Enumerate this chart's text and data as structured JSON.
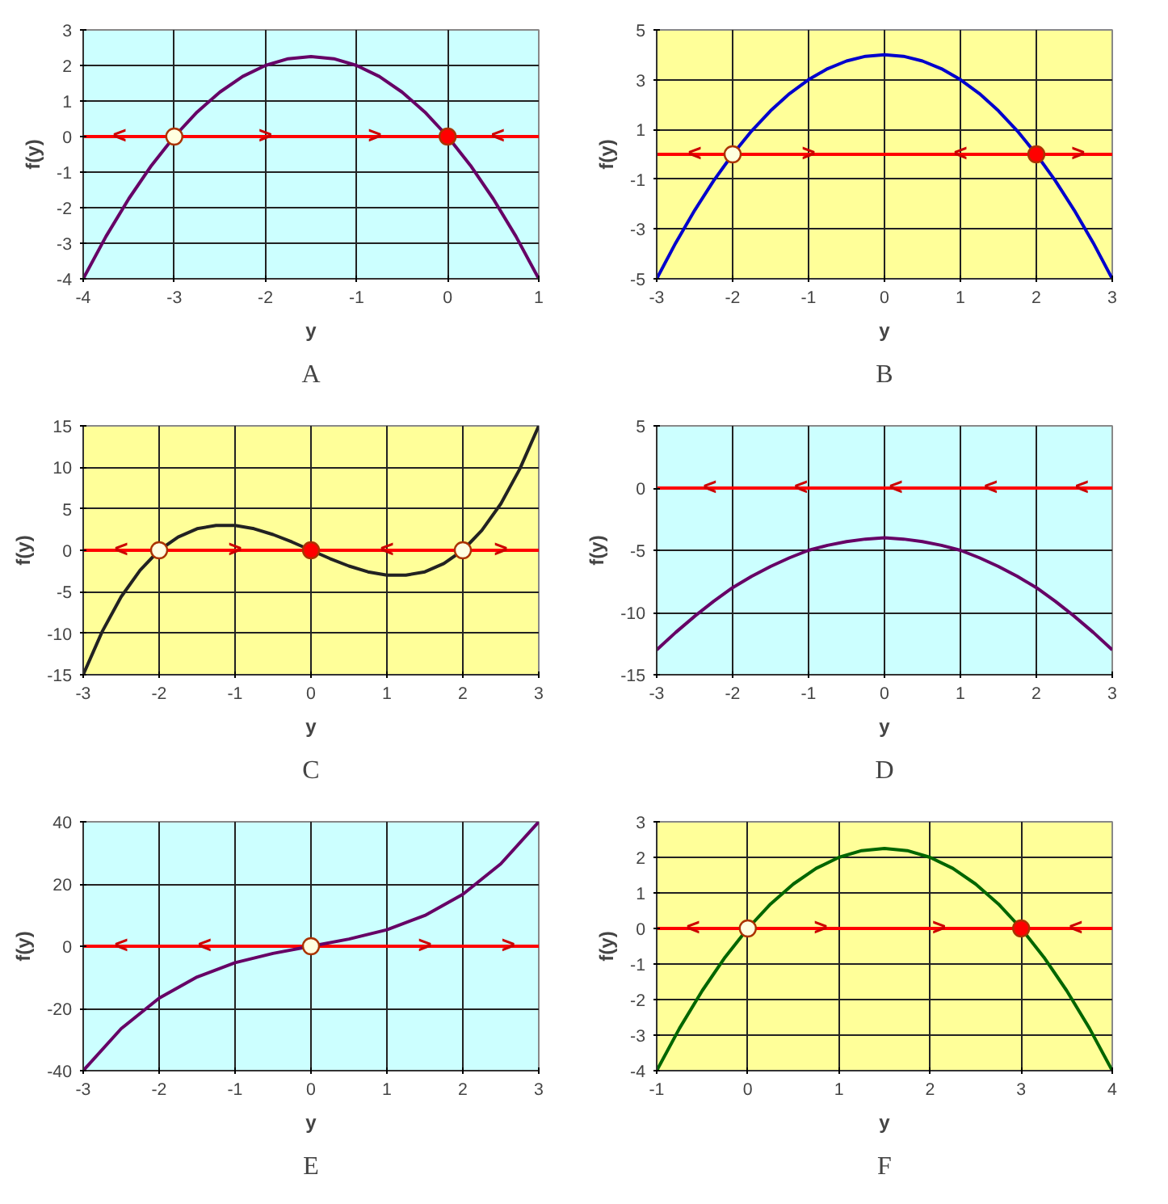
{
  "chart_data": [
    {
      "type": "line",
      "title": "A",
      "xlabel": "y",
      "ylabel": "f(y)",
      "xlim": [
        -4,
        1
      ],
      "ylim": [
        -4,
        3
      ],
      "xticks": [
        -4,
        -3,
        -2,
        -1,
        0,
        1
      ],
      "yticks": [
        -4,
        -3,
        -2,
        -1,
        0,
        1,
        2,
        3
      ],
      "grid": true,
      "series": [
        {
          "color": "#660066",
          "x": [
            -4,
            -3.75,
            -3.5,
            -3.25,
            -3,
            -2.75,
            -2.5,
            -2.25,
            -2,
            -1.75,
            -1.5,
            -1.25,
            -1,
            -0.75,
            -0.5,
            -0.25,
            0,
            0.25,
            0.5,
            0.75,
            1
          ],
          "values": [
            -4,
            -2.81,
            -1.75,
            -0.81,
            0,
            0.69,
            1.25,
            1.69,
            2,
            2.19,
            2.25,
            2.19,
            2,
            1.69,
            1.25,
            0.69,
            0,
            -0.81,
            -1.75,
            -2.81,
            -4
          ]
        },
        {
          "type": "scatter",
          "marker": "circle",
          "color": "#ffffe0",
          "x": [
            -3
          ],
          "values": [
            0
          ]
        },
        {
          "type": "scatter",
          "marker": "circle",
          "color": "#ff0000",
          "x": [
            0
          ],
          "values": [
            0
          ]
        }
      ],
      "ref_lines": [
        {
          "axis": "y",
          "value": 0,
          "color": "#ff0000"
        }
      ],
      "annotations": [
        {
          "text": "<",
          "x": -3.6,
          "y": 0
        },
        {
          "text": ">",
          "x": -2,
          "y": 0
        },
        {
          "text": ">",
          "x": -0.8,
          "y": 0
        },
        {
          "text": "<",
          "x": 0.55,
          "y": 0
        }
      ]
    },
    {
      "type": "line",
      "title": "B",
      "xlabel": "y",
      "ylabel": "f(y)",
      "xlim": [
        -3,
        3
      ],
      "ylim": [
        -5,
        5
      ],
      "xticks": [
        -3,
        -2,
        -1,
        0,
        1,
        2,
        3
      ],
      "yticks": [
        -5,
        -3,
        -1,
        1,
        3,
        5
      ],
      "grid": true,
      "series": [
        {
          "color": "#0000cc",
          "x": [
            -3,
            -2.75,
            -2.5,
            -2.25,
            -2,
            -1.75,
            -1.5,
            -1.25,
            -1,
            -0.75,
            -0.5,
            -0.25,
            0,
            0.25,
            0.5,
            0.75,
            1,
            1.25,
            1.5,
            1.75,
            2,
            2.25,
            2.5,
            2.75,
            3
          ],
          "values": [
            -5,
            -3.56,
            -2.25,
            -1.06,
            0,
            0.94,
            1.75,
            2.44,
            3,
            3.44,
            3.75,
            3.94,
            4,
            3.94,
            3.75,
            3.44,
            3,
            2.44,
            1.75,
            0.94,
            0,
            -1.06,
            -2.25,
            -3.56,
            -5
          ]
        },
        {
          "type": "scatter",
          "marker": "circle",
          "color": "#ffffe0",
          "x": [
            -2
          ],
          "values": [
            0
          ]
        },
        {
          "type": "scatter",
          "marker": "circle",
          "color": "#ff0000",
          "x": [
            2
          ],
          "values": [
            0
          ]
        }
      ],
      "ref_lines": [
        {
          "axis": "y",
          "value": 0,
          "color": "#ff0000"
        }
      ],
      "annotations": [
        {
          "text": "<",
          "x": -2.5,
          "y": 0
        },
        {
          "text": ">",
          "x": -1,
          "y": 0
        },
        {
          "text": "<",
          "x": 1,
          "y": 0
        },
        {
          "text": ">",
          "x": 2.55,
          "y": 0
        }
      ]
    },
    {
      "type": "line",
      "title": "C",
      "xlabel": "y",
      "ylabel": "f(y)",
      "xlim": [
        -3,
        3
      ],
      "ylim": [
        -15,
        15
      ],
      "xticks": [
        -3,
        -2,
        -1,
        0,
        1,
        2,
        3
      ],
      "yticks": [
        -15,
        -10,
        -5,
        0,
        5,
        10,
        15
      ],
      "grid": true,
      "series": [
        {
          "color": "#222222",
          "x": [
            -3,
            -2.75,
            -2.5,
            -2.25,
            -2,
            -1.75,
            -1.5,
            -1.25,
            -1,
            -0.75,
            -0.5,
            -0.25,
            0,
            0.25,
            0.5,
            0.75,
            1,
            1.25,
            1.5,
            1.75,
            2,
            2.25,
            2.5,
            2.75,
            3
          ],
          "values": [
            -15,
            -9.8,
            -5.6,
            -2.4,
            0,
            1.6,
            2.6,
            3,
            3,
            2.6,
            1.9,
            1,
            0,
            -1,
            -1.9,
            -2.6,
            -3,
            -3,
            -2.6,
            -1.6,
            0,
            2.4,
            5.6,
            9.8,
            15
          ]
        },
        {
          "type": "scatter",
          "marker": "circle",
          "color": "#ffffe0",
          "x": [
            -2,
            2
          ],
          "values": [
            0,
            0
          ]
        },
        {
          "type": "scatter",
          "marker": "circle",
          "color": "#ff0000",
          "x": [
            0
          ],
          "values": [
            0
          ]
        }
      ],
      "ref_lines": [
        {
          "axis": "y",
          "value": 0,
          "color": "#ff0000"
        }
      ],
      "annotations": [
        {
          "text": "<",
          "x": -2.5,
          "y": 0
        },
        {
          "text": ">",
          "x": -1,
          "y": 0
        },
        {
          "text": "<",
          "x": 1,
          "y": 0
        },
        {
          "text": ">",
          "x": 2.5,
          "y": 0
        }
      ]
    },
    {
      "type": "line",
      "title": "D",
      "xlabel": "y",
      "ylabel": "f(y)",
      "xlim": [
        -3,
        3
      ],
      "ylim": [
        -15,
        5
      ],
      "xticks": [
        -3,
        -2,
        -1,
        0,
        1,
        2,
        3
      ],
      "yticks": [
        -15,
        -10,
        -5,
        0,
        5
      ],
      "grid": true,
      "series": [
        {
          "color": "#660066",
          "x": [
            -3,
            -2.75,
            -2.5,
            -2.25,
            -2,
            -1.75,
            -1.5,
            -1.25,
            -1,
            -0.75,
            -0.5,
            -0.25,
            0,
            0.25,
            0.5,
            0.75,
            1,
            1.25,
            1.5,
            1.75,
            2,
            2.25,
            2.5,
            2.75,
            3
          ],
          "values": [
            -13,
            -11.6,
            -10.3,
            -9.1,
            -8,
            -7.1,
            -6.3,
            -5.6,
            -5,
            -4.6,
            -4.3,
            -4.1,
            -4,
            -4.1,
            -4.3,
            -4.6,
            -5,
            -5.6,
            -6.3,
            -7.1,
            -8,
            -9.1,
            -10.3,
            -11.6,
            -13
          ]
        }
      ],
      "ref_lines": [
        {
          "axis": "y",
          "value": 0,
          "color": "#ff0000"
        }
      ],
      "annotations": [
        {
          "text": "<",
          "x": -2.3,
          "y": 0
        },
        {
          "text": "<",
          "x": -1.1,
          "y": 0
        },
        {
          "text": "<",
          "x": 0.15,
          "y": 0
        },
        {
          "text": "<",
          "x": 1.4,
          "y": 0
        },
        {
          "text": "<",
          "x": 2.6,
          "y": 0
        }
      ]
    },
    {
      "type": "line",
      "title": "E",
      "xlabel": "y",
      "ylabel": "f(y)",
      "xlim": [
        -3,
        3
      ],
      "ylim": [
        -40,
        40
      ],
      "xticks": [
        -3,
        -2,
        -1,
        0,
        1,
        2,
        3
      ],
      "yticks": [
        -40,
        -20,
        0,
        20,
        40
      ],
      "grid": true,
      "series": [
        {
          "color": "#660066",
          "x": [
            -3,
            -2.5,
            -2,
            -1.5,
            -1,
            -0.5,
            0,
            0.5,
            1,
            1.5,
            2,
            2.5,
            3
          ],
          "values": [
            -40,
            -26.5,
            -16.7,
            -9.9,
            -5.3,
            -2.3,
            0,
            2.3,
            5.3,
            9.9,
            16.7,
            26.5,
            40
          ]
        },
        {
          "type": "scatter",
          "marker": "circle",
          "color": "#ffffe0",
          "x": [
            0
          ],
          "values": [
            0
          ]
        }
      ],
      "ref_lines": [
        {
          "axis": "y",
          "value": 0,
          "color": "#ff0000"
        }
      ],
      "annotations": [
        {
          "text": "<",
          "x": -2.5,
          "y": 0
        },
        {
          "text": "<",
          "x": -1.4,
          "y": 0
        },
        {
          "text": ">",
          "x": 1.5,
          "y": 0
        },
        {
          "text": ">",
          "x": 2.6,
          "y": 0
        }
      ]
    },
    {
      "type": "line",
      "title": "F",
      "xlabel": "y",
      "ylabel": "f(y)",
      "xlim": [
        -1,
        4
      ],
      "ylim": [
        -4,
        3
      ],
      "xticks": [
        -1,
        0,
        1,
        2,
        3,
        4
      ],
      "yticks": [
        -4,
        -3,
        -2,
        -1,
        0,
        1,
        2,
        3
      ],
      "grid": true,
      "series": [
        {
          "color": "#006600",
          "x": [
            -1,
            -0.75,
            -0.5,
            -0.25,
            0,
            0.25,
            0.5,
            0.75,
            1,
            1.25,
            1.5,
            1.75,
            2,
            2.25,
            2.5,
            2.75,
            3,
            3.25,
            3.5,
            3.75,
            4
          ],
          "values": [
            -4,
            -2.81,
            -1.75,
            -0.81,
            0,
            0.69,
            1.25,
            1.69,
            2,
            2.19,
            2.25,
            2.19,
            2,
            1.69,
            1.25,
            0.69,
            0,
            -0.81,
            -1.75,
            -2.81,
            -4
          ]
        },
        {
          "type": "scatter",
          "marker": "circle",
          "color": "#ffffe0",
          "x": [
            0
          ],
          "values": [
            0
          ]
        },
        {
          "type": "scatter",
          "marker": "circle",
          "color": "#ff0000",
          "x": [
            3
          ],
          "values": [
            0
          ]
        }
      ],
      "ref_lines": [
        {
          "axis": "y",
          "value": 0,
          "color": "#ff0000"
        }
      ],
      "annotations": [
        {
          "text": "<",
          "x": -0.6,
          "y": 0
        },
        {
          "text": ">",
          "x": 0.8,
          "y": 0
        },
        {
          "text": ">",
          "x": 2.1,
          "y": 0
        },
        {
          "text": "<",
          "x": 3.6,
          "y": 0
        }
      ]
    }
  ]
}
